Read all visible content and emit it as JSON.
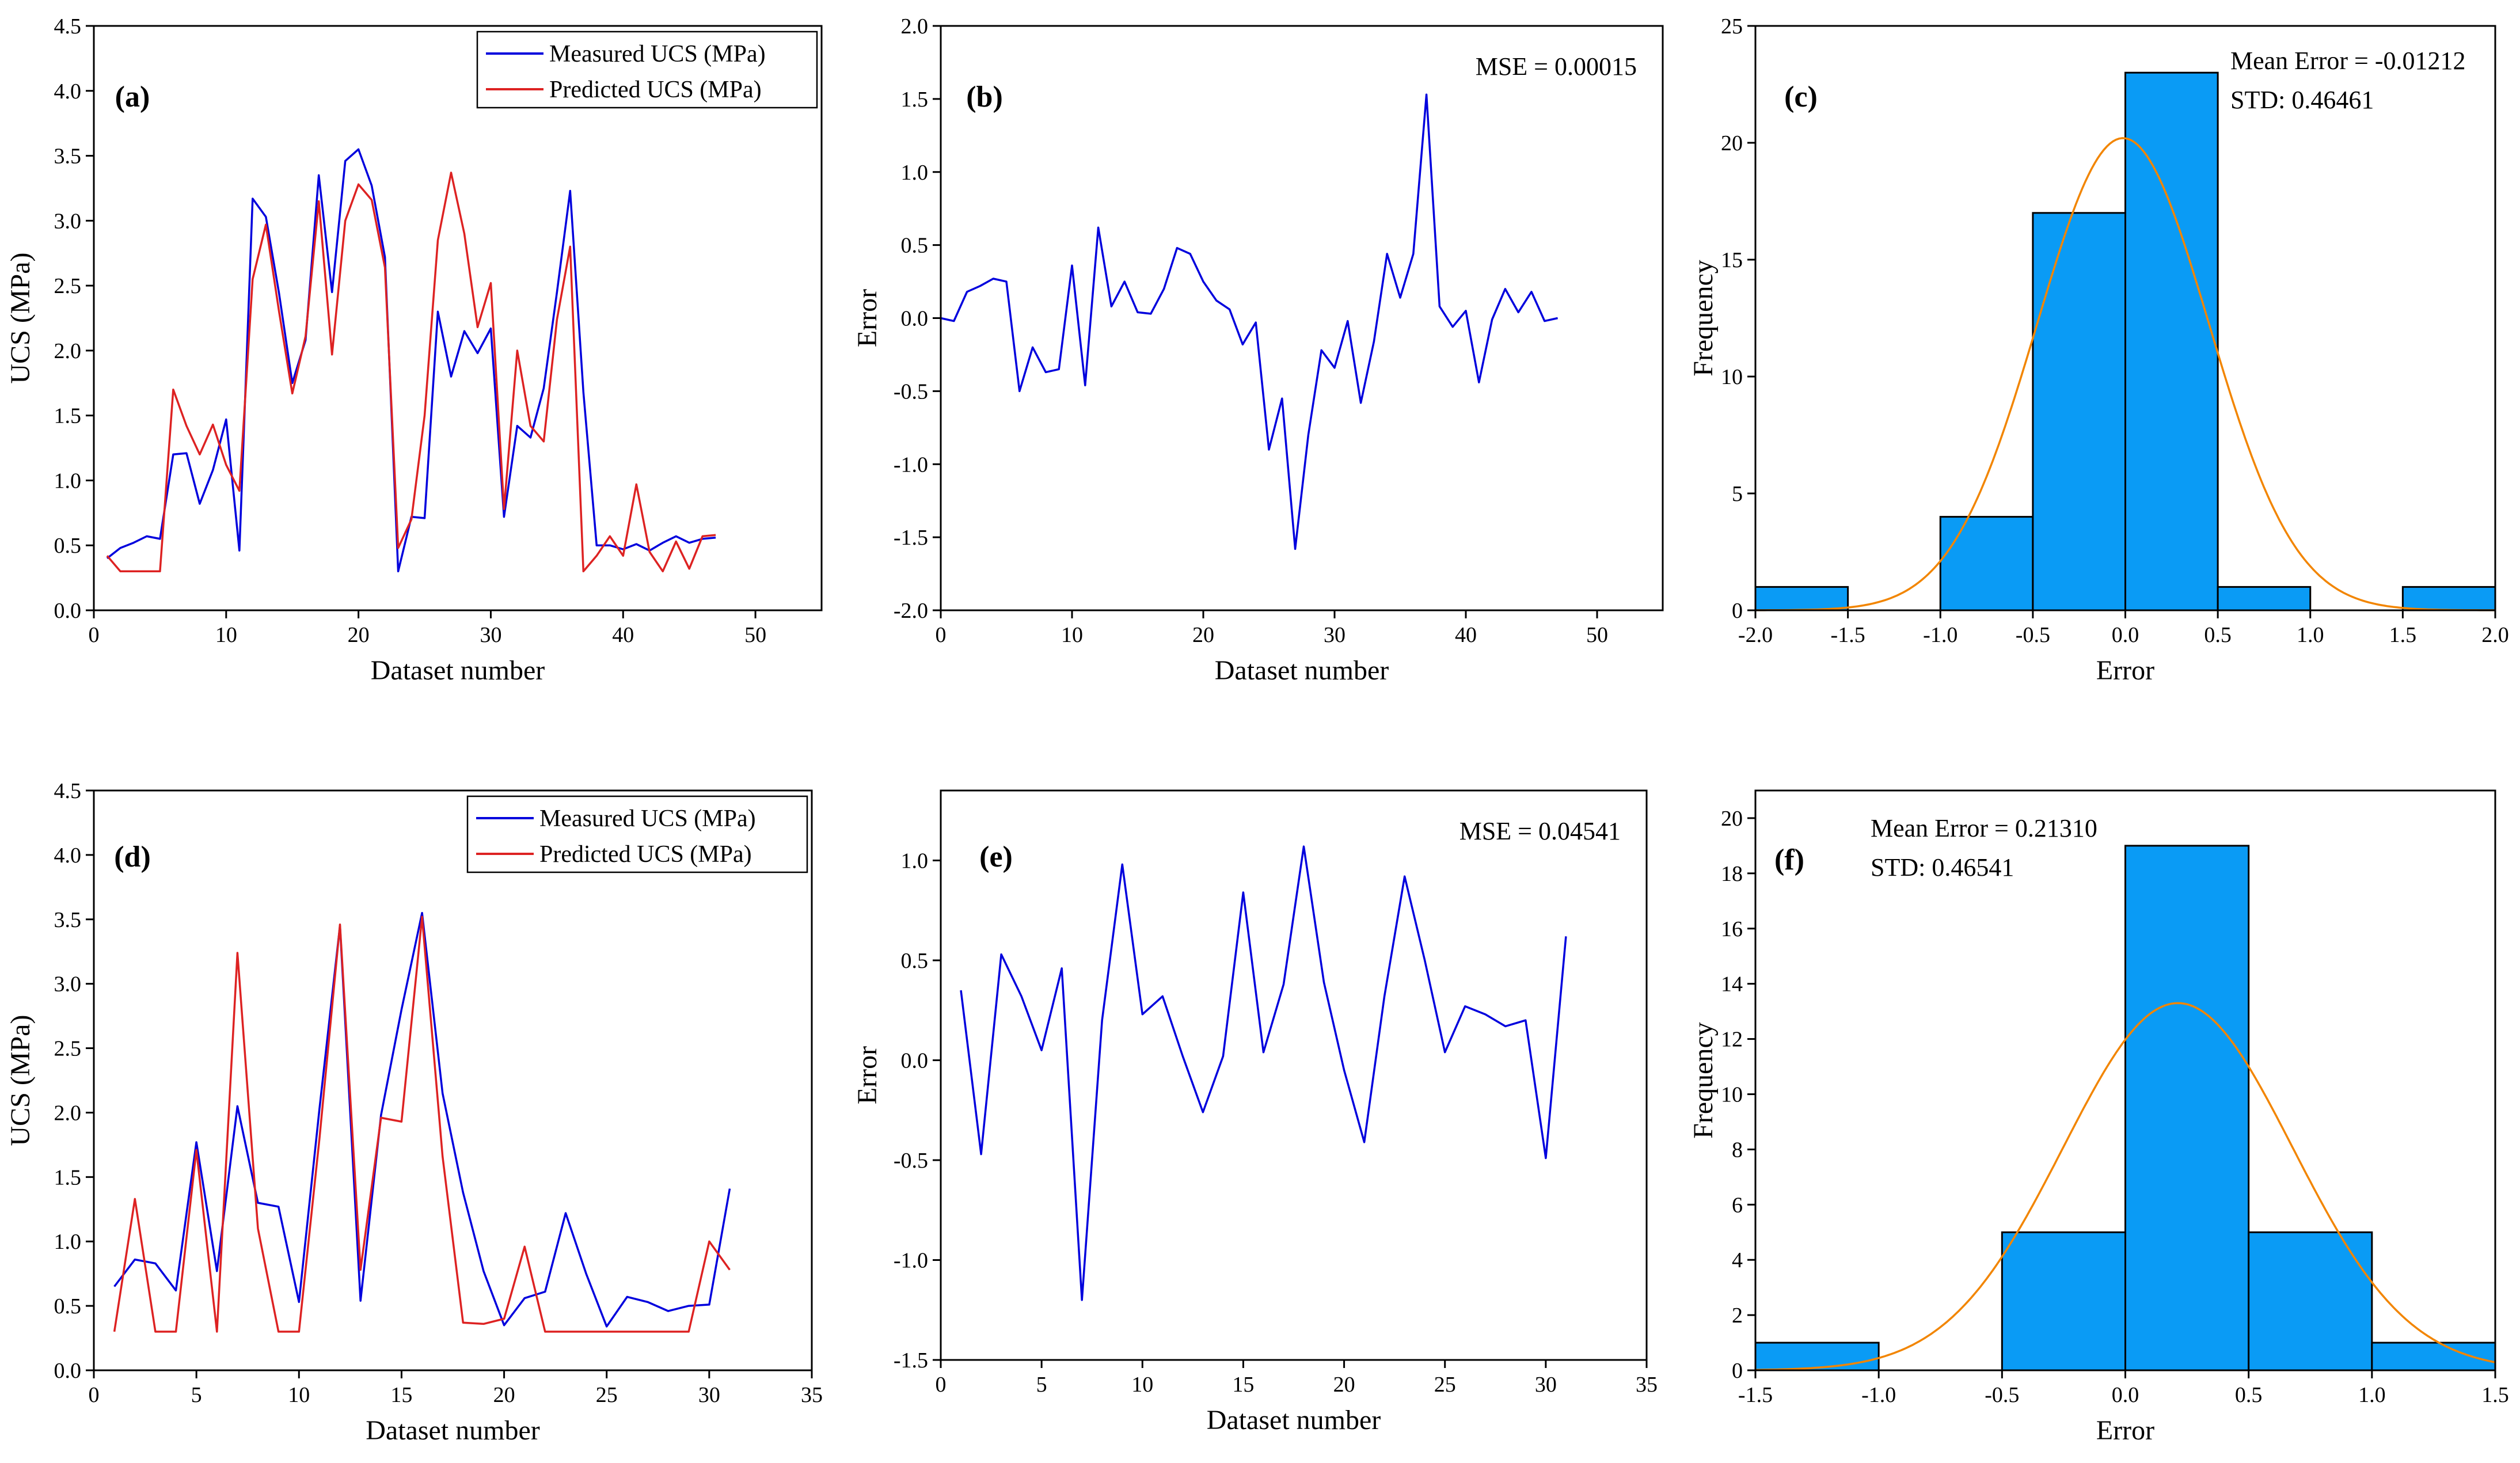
{
  "colors": {
    "measured": "#0000dd",
    "predicted": "#dd2222",
    "bar_fill": "#0a9bf5",
    "bar_stroke": "#000000",
    "fit_curve": "#f28500",
    "axis": "#000000"
  },
  "chart_data": [
    {
      "id": "a",
      "type": "line",
      "panel_label": "(a)",
      "xlabel": "Dataset number",
      "ylabel": "UCS (MPa)",
      "xlim": [
        0,
        55
      ],
      "ylim": [
        0,
        4.5
      ],
      "xticks": [
        0,
        10,
        20,
        30,
        40,
        50
      ],
      "xtick_labels": [
        "0",
        "10",
        "20",
        "30",
        "40",
        "50"
      ],
      "yticks": [
        0,
        0.5,
        1,
        1.5,
        2,
        2.5,
        3,
        3.5,
        4,
        4.5
      ],
      "ytick_labels": [
        "0.0",
        "0.5",
        "1.0",
        "1.5",
        "2.0",
        "2.5",
        "3.0",
        "3.5",
        "4.0",
        "4.5"
      ],
      "legend_position": "top-right",
      "series": [
        {
          "name": "Measured UCS (MPa)",
          "color_key": "measured",
          "x": [
            1,
            2,
            3,
            4,
            5,
            6,
            7,
            8,
            9,
            10,
            11,
            12,
            13,
            14,
            15,
            16,
            17,
            18,
            19,
            20,
            21,
            22,
            23,
            24,
            25,
            26,
            27,
            28,
            29,
            30,
            31,
            32,
            33,
            34,
            35,
            36,
            37,
            38,
            39,
            40,
            41,
            42,
            43,
            44,
            45,
            46,
            47
          ],
          "values": [
            0.4,
            0.48,
            0.52,
            0.57,
            0.55,
            1.2,
            1.21,
            0.82,
            1.08,
            1.47,
            0.46,
            3.17,
            3.03,
            2.44,
            1.75,
            2.08,
            3.35,
            2.45,
            3.46,
            3.55,
            3.27,
            2.72,
            0.3,
            0.72,
            0.71,
            2.3,
            1.8,
            2.15,
            1.98,
            2.17,
            0.72,
            1.42,
            1.33,
            1.71,
            2.45,
            3.23,
            1.68,
            0.5,
            0.5,
            0.47,
            0.51,
            0.46,
            0.52,
            0.57,
            0.52,
            0.55,
            0.56
          ]
        },
        {
          "name": "Predicted UCS (MPa)",
          "color_key": "predicted",
          "x": [
            1,
            2,
            3,
            4,
            5,
            6,
            7,
            8,
            9,
            10,
            11,
            12,
            13,
            14,
            15,
            16,
            17,
            18,
            19,
            20,
            21,
            22,
            23,
            24,
            25,
            26,
            27,
            28,
            29,
            30,
            31,
            32,
            33,
            34,
            35,
            36,
            37,
            38,
            39,
            40,
            41,
            42,
            43,
            44,
            45,
            46,
            47
          ],
          "values": [
            0.42,
            0.3,
            0.3,
            0.3,
            0.3,
            1.7,
            1.42,
            1.2,
            1.43,
            1.12,
            0.92,
            2.55,
            2.97,
            2.3,
            1.67,
            2.11,
            3.15,
            1.97,
            3.0,
            3.28,
            3.16,
            2.64,
            0.48,
            0.7,
            1.5,
            2.85,
            3.37,
            2.9,
            2.18,
            2.52,
            0.78,
            2.0,
            1.42,
            1.3,
            2.24,
            2.8,
            0.3,
            0.42,
            0.57,
            0.42,
            0.97,
            0.45,
            0.3,
            0.53,
            0.32,
            0.57,
            0.58
          ]
        }
      ]
    },
    {
      "id": "b",
      "type": "line",
      "panel_label": "(b)",
      "xlabel": "Dataset number",
      "ylabel": "Error",
      "xlim": [
        0,
        55
      ],
      "ylim": [
        -2,
        2
      ],
      "xticks": [
        0,
        10,
        20,
        30,
        40,
        50
      ],
      "xtick_labels": [
        "0",
        "10",
        "20",
        "30",
        "40",
        "50"
      ],
      "yticks": [
        -2,
        -1.5,
        -1,
        -0.5,
        0,
        0.5,
        1,
        1.5,
        2
      ],
      "ytick_labels": [
        "-2.0",
        "-1.5",
        "-1.0",
        "-0.5",
        "0.0",
        "0.5",
        "1.0",
        "1.5",
        "2.0"
      ],
      "annotation": "MSE = 0.00015",
      "series": [
        {
          "name": "Error",
          "color_key": "measured",
          "x": [
            0,
            1,
            2,
            3,
            4,
            5,
            6,
            7,
            8,
            9,
            10,
            11,
            12,
            13,
            14,
            15,
            16,
            17,
            18,
            19,
            20,
            21,
            22,
            23,
            24,
            25,
            26,
            27,
            28,
            29,
            30,
            31,
            32,
            33,
            34,
            35,
            36,
            37,
            38,
            39,
            40,
            41,
            42,
            43,
            44,
            45,
            46,
            47
          ],
          "values": [
            0.0,
            -0.02,
            0.18,
            0.22,
            0.27,
            0.25,
            -0.5,
            -0.2,
            -0.37,
            -0.35,
            0.36,
            -0.46,
            0.62,
            0.08,
            0.25,
            0.04,
            0.03,
            0.2,
            0.48,
            0.44,
            0.25,
            0.12,
            0.06,
            -0.18,
            -0.03,
            -0.9,
            -0.55,
            -1.58,
            -0.8,
            -0.22,
            -0.34,
            -0.02,
            -0.58,
            -0.16,
            0.44,
            0.14,
            0.44,
            1.53,
            0.08,
            -0.06,
            0.05,
            -0.44,
            -0.01,
            0.2,
            0.04,
            0.18,
            -0.02,
            0.0
          ]
        }
      ]
    },
    {
      "id": "c",
      "type": "histogram",
      "panel_label": "(c)",
      "xlabel": "Error",
      "ylabel": "Frequency",
      "xlim": [
        -2,
        2
      ],
      "ylim": [
        0,
        25
      ],
      "xticks": [
        -2,
        -1.5,
        -1,
        -0.5,
        0,
        0.5,
        1,
        1.5,
        2
      ],
      "xtick_labels": [
        "-2.0",
        "-1.5",
        "-1.0",
        "-0.5",
        "0.0",
        "0.5",
        "1.0",
        "1.5",
        "2.0"
      ],
      "yticks": [
        0,
        5,
        10,
        15,
        20,
        25
      ],
      "ytick_labels": [
        "0",
        "5",
        "10",
        "15",
        "20",
        "25"
      ],
      "bins": [
        [
          -2.0,
          -1.5
        ],
        [
          -1.5,
          -1.0
        ],
        [
          -1.0,
          -0.5
        ],
        [
          -0.5,
          0.0
        ],
        [
          0.0,
          0.5
        ],
        [
          0.5,
          1.0
        ],
        [
          1.0,
          1.5
        ],
        [
          1.5,
          2.0
        ]
      ],
      "counts": [
        1,
        0,
        4,
        17,
        23,
        1,
        0,
        1
      ],
      "normal_fit": {
        "mean": -0.01212,
        "std": 0.46461,
        "peak": 20.2
      },
      "annotation_lines": [
        "Mean Error = -0.01212",
        "STD: 0.46461"
      ]
    },
    {
      "id": "d",
      "type": "line",
      "panel_label": "(d)",
      "xlabel": "Dataset number",
      "ylabel": "UCS (MPa)",
      "xlim": [
        0,
        35
      ],
      "ylim": [
        0,
        4.5
      ],
      "xticks": [
        0,
        5,
        10,
        15,
        20,
        25,
        30,
        35
      ],
      "xtick_labels": [
        "0",
        "5",
        "10",
        "15",
        "20",
        "25",
        "30",
        "35"
      ],
      "yticks": [
        0,
        0.5,
        1,
        1.5,
        2,
        2.5,
        3,
        3.5,
        4,
        4.5
      ],
      "ytick_labels": [
        "0.0",
        "0.5",
        "1.0",
        "1.5",
        "2.0",
        "2.5",
        "3.0",
        "3.5",
        "4.0",
        "4.5"
      ],
      "legend_position": "top-right",
      "series": [
        {
          "name": "Measured UCS (MPa)",
          "color_key": "measured",
          "x": [
            1,
            2,
            3,
            4,
            5,
            6,
            7,
            8,
            9,
            10,
            11,
            12,
            13,
            14,
            15,
            16,
            17,
            18,
            19,
            20,
            21,
            22,
            23,
            24,
            25,
            26,
            27,
            28,
            29,
            30,
            31
          ],
          "values": [
            0.65,
            0.86,
            0.83,
            0.62,
            1.77,
            0.77,
            2.05,
            1.3,
            1.27,
            0.53,
            2.03,
            3.45,
            0.54,
            1.98,
            2.8,
            3.55,
            2.15,
            1.38,
            0.77,
            0.35,
            0.56,
            0.61,
            1.22,
            0.75,
            0.34,
            0.57,
            0.53,
            0.46,
            0.5,
            0.51,
            1.41
          ]
        },
        {
          "name": "Predicted UCS (MPa)",
          "color_key": "predicted",
          "x": [
            1,
            2,
            3,
            4,
            5,
            6,
            7,
            8,
            9,
            10,
            11,
            12,
            13,
            14,
            15,
            16,
            17,
            18,
            19,
            20,
            21,
            22,
            23,
            24,
            25,
            26,
            27,
            28,
            29,
            30,
            31
          ],
          "values": [
            0.3,
            1.33,
            0.3,
            0.3,
            1.71,
            0.3,
            3.24,
            1.1,
            0.3,
            0.3,
            1.8,
            3.46,
            0.78,
            1.96,
            1.93,
            3.52,
            1.66,
            0.37,
            0.36,
            0.4,
            0.96,
            0.3,
            0.3,
            0.3,
            0.3,
            0.3,
            0.3,
            0.3,
            0.3,
            1.0,
            0.78
          ]
        }
      ]
    },
    {
      "id": "e",
      "type": "line",
      "panel_label": "(e)",
      "xlabel": "Dataset number",
      "ylabel": "Error",
      "xlim": [
        0,
        35
      ],
      "ylim": [
        -1.5,
        1.35
      ],
      "xticks": [
        0,
        5,
        10,
        15,
        20,
        25,
        30,
        35
      ],
      "xtick_labels": [
        "0",
        "5",
        "10",
        "15",
        "20",
        "25",
        "30",
        "35"
      ],
      "yticks": [
        -1.5,
        -1,
        -0.5,
        0,
        0.5,
        1
      ],
      "ytick_labels": [
        "-1.5",
        "-1.0",
        "-0.5",
        "0.0",
        "0.5",
        "1.0"
      ],
      "annotation": "MSE = 0.04541",
      "series": [
        {
          "name": "Error",
          "color_key": "measured",
          "x": [
            1,
            2,
            3,
            4,
            5,
            6,
            7,
            8,
            9,
            10,
            11,
            12,
            13,
            14,
            15,
            16,
            17,
            18,
            19,
            20,
            21,
            22,
            23,
            24,
            25,
            26,
            27,
            28,
            29,
            30,
            31
          ],
          "values": [
            0.35,
            -0.47,
            0.53,
            0.32,
            0.05,
            0.46,
            -1.2,
            0.2,
            0.98,
            0.23,
            0.32,
            0.02,
            -0.26,
            0.02,
            0.84,
            0.04,
            0.38,
            1.07,
            0.39,
            -0.05,
            -0.41,
            0.32,
            0.92,
            0.5,
            0.04,
            0.27,
            0.23,
            0.17,
            0.2,
            -0.49,
            0.62
          ]
        }
      ]
    },
    {
      "id": "f",
      "type": "histogram",
      "panel_label": "(f)",
      "xlabel": "Error",
      "ylabel": "Frequency",
      "xlim": [
        -1.5,
        1.5
      ],
      "ylim": [
        0,
        21
      ],
      "xticks": [
        -1.5,
        -1,
        -0.5,
        0,
        0.5,
        1,
        1.5
      ],
      "xtick_labels": [
        "-1.5",
        "-1.0",
        "-0.5",
        "0.0",
        "0.5",
        "1.0",
        "1.5"
      ],
      "yticks": [
        0,
        2,
        4,
        6,
        8,
        10,
        12,
        14,
        16,
        18,
        20
      ],
      "ytick_labels": [
        "0",
        "2",
        "4",
        "6",
        "8",
        "10",
        "12",
        "14",
        "16",
        "18",
        "20"
      ],
      "bins": [
        [
          -1.5,
          -1.0
        ],
        [
          -1.0,
          -0.5
        ],
        [
          -0.5,
          0.0
        ],
        [
          0.0,
          0.5
        ],
        [
          0.5,
          1.0
        ],
        [
          1.0,
          1.5
        ]
      ],
      "counts": [
        1,
        0,
        5,
        19,
        5,
        1
      ],
      "normal_fit": {
        "mean": 0.2131,
        "std": 0.46541,
        "peak": 13.3
      },
      "annotation_lines": [
        "Mean Error = 0.21310",
        "STD: 0.46541"
      ]
    }
  ]
}
